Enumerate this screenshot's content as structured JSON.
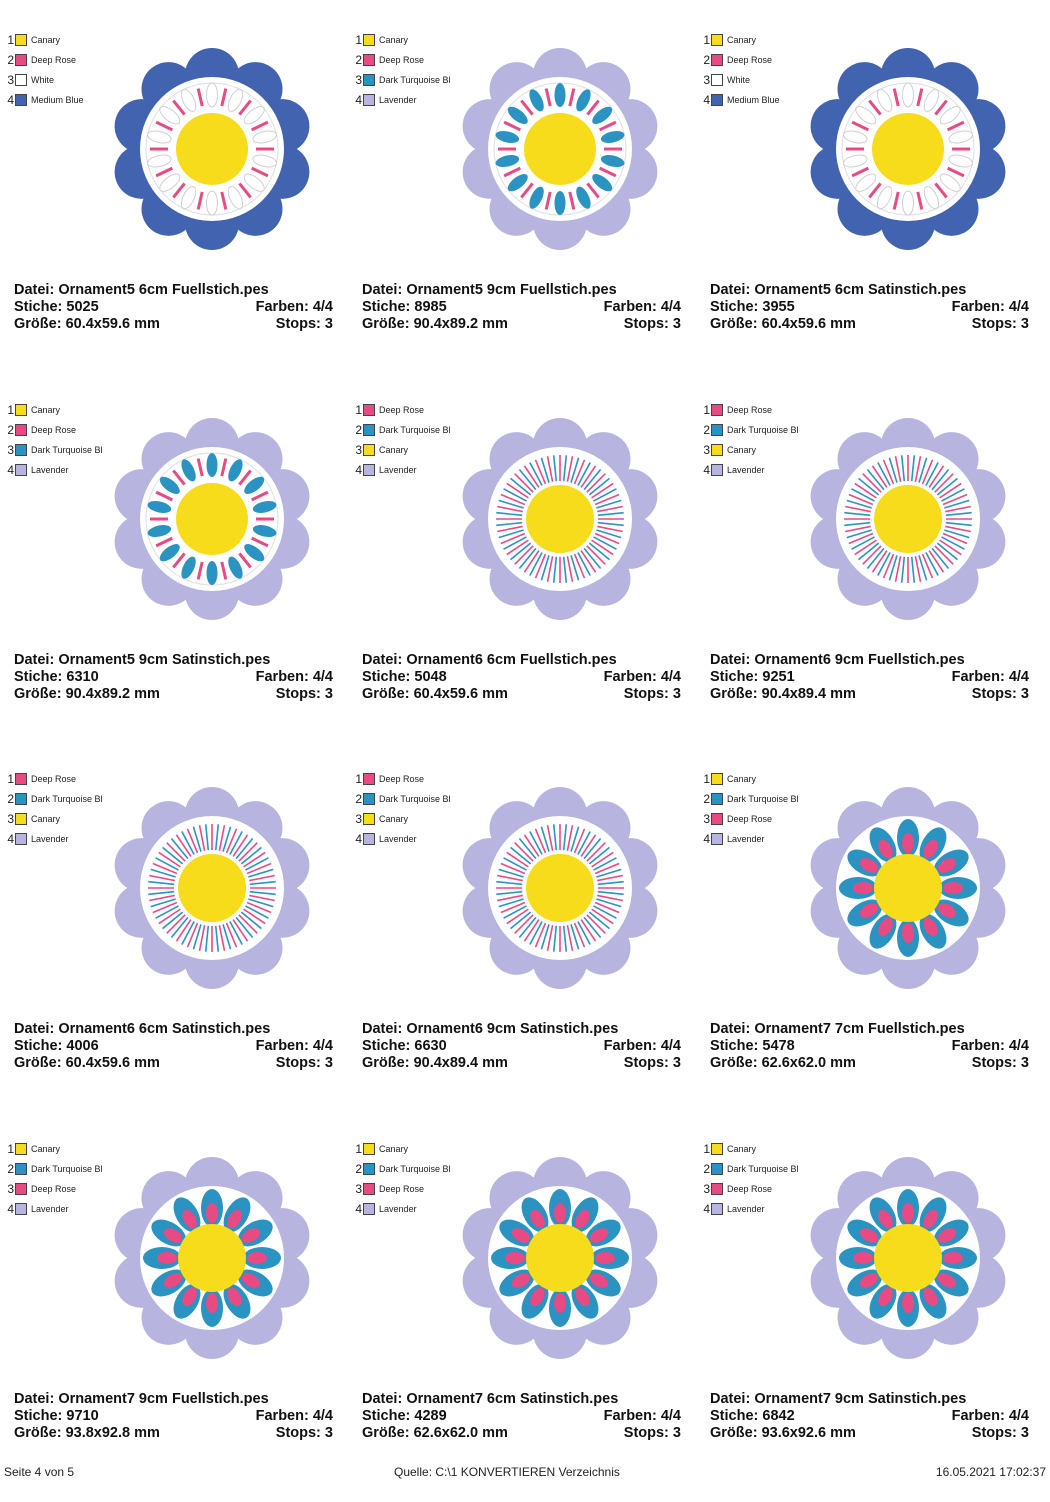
{
  "colors": {
    "canary": "#f6dc1a",
    "deep_rose": "#e84a83",
    "white": "#ffffff",
    "medium_blue": "#4163b0",
    "dark_turquoise": "#2a93c2",
    "lavender": "#b7b5e0"
  },
  "info_labels": {
    "file": "Datei:",
    "stitches": "Stiche:",
    "colors": "Farben:",
    "size": "Größe:",
    "stops": "Stops:"
  },
  "designs": [
    {
      "file": "Ornament5 6cm Fuellstich.pes",
      "stitches": "5025",
      "colors": "4/4",
      "size": "60.4x59.6 mm",
      "stops": "3",
      "style": "drops",
      "petal_icon": "scalloped-petal-icon",
      "petal": "#4163b0",
      "accent_a": "#ffffff",
      "accent_b": "#e84a83",
      "legend": [
        {
          "num": "1",
          "name": "Canary",
          "color": "#f6dc1a"
        },
        {
          "num": "2",
          "name": "Deep Rose",
          "color": "#e84a83"
        },
        {
          "num": "3",
          "name": "White",
          "color": "#ffffff"
        },
        {
          "num": "4",
          "name": "Medium Blue",
          "color": "#4163b0"
        }
      ]
    },
    {
      "file": "Ornament5 9cm Fuellstich.pes",
      "stitches": "8985",
      "colors": "4/4",
      "size": "90.4x89.2 mm",
      "stops": "3",
      "style": "drops",
      "petal_icon": "scalloped-petal-icon",
      "petal": "#b7b5e0",
      "accent_a": "#2a93c2",
      "accent_b": "#e84a83",
      "legend": [
        {
          "num": "1",
          "name": "Canary",
          "color": "#f6dc1a"
        },
        {
          "num": "2",
          "name": "Deep Rose",
          "color": "#e84a83"
        },
        {
          "num": "3",
          "name": "Dark Turquoise Bl",
          "color": "#2a93c2"
        },
        {
          "num": "4",
          "name": "Lavender",
          "color": "#b7b5e0"
        }
      ]
    },
    {
      "file": "Ornament5 6cm Satinstich.pes",
      "stitches": "3955",
      "colors": "4/4",
      "size": "60.4x59.6 mm",
      "stops": "3",
      "style": "drops",
      "petal_icon": "scalloped-petal-icon",
      "petal": "#4163b0",
      "accent_a": "#ffffff",
      "accent_b": "#e84a83",
      "legend": [
        {
          "num": "1",
          "name": "Canary",
          "color": "#f6dc1a"
        },
        {
          "num": "2",
          "name": "Deep Rose",
          "color": "#e84a83"
        },
        {
          "num": "3",
          "name": "White",
          "color": "#ffffff"
        },
        {
          "num": "4",
          "name": "Medium Blue",
          "color": "#4163b0"
        }
      ]
    },
    {
      "file": "Ornament5 9cm Satinstich.pes",
      "stitches": "6310",
      "colors": "4/4",
      "size": "90.4x89.2 mm",
      "stops": "3",
      "style": "drops",
      "petal_icon": "scalloped-petal-icon",
      "petal": "#b7b5e0",
      "accent_a": "#2a93c2",
      "accent_b": "#e84a83",
      "legend": [
        {
          "num": "1",
          "name": "Canary",
          "color": "#f6dc1a"
        },
        {
          "num": "2",
          "name": "Deep Rose",
          "color": "#e84a83"
        },
        {
          "num": "3",
          "name": "Dark Turquoise Bl",
          "color": "#2a93c2"
        },
        {
          "num": "4",
          "name": "Lavender",
          "color": "#b7b5e0"
        }
      ]
    },
    {
      "file": "Ornament6 6cm Fuellstich.pes",
      "stitches": "5048",
      "colors": "4/4",
      "size": "60.4x59.6 mm",
      "stops": "3",
      "style": "rays",
      "petal_icon": "scalloped-petal-icon",
      "petal": "#b7b5e0",
      "accent_a": "#e84a83",
      "accent_b": "#2a93c2",
      "legend": [
        {
          "num": "1",
          "name": "Deep Rose",
          "color": "#e84a83"
        },
        {
          "num": "2",
          "name": "Dark Turquoise Bl",
          "color": "#2a93c2"
        },
        {
          "num": "3",
          "name": "Canary",
          "color": "#f6dc1a"
        },
        {
          "num": "4",
          "name": "Lavender",
          "color": "#b7b5e0"
        }
      ]
    },
    {
      "file": "Ornament6 9cm Fuellstich.pes",
      "stitches": "9251",
      "colors": "4/4",
      "size": "90.4x89.4 mm",
      "stops": "3",
      "style": "rays",
      "petal_icon": "scalloped-petal-icon",
      "petal": "#b7b5e0",
      "accent_a": "#e84a83",
      "accent_b": "#2a93c2",
      "legend": [
        {
          "num": "1",
          "name": "Deep Rose",
          "color": "#e84a83"
        },
        {
          "num": "2",
          "name": "Dark Turquoise Bl",
          "color": "#2a93c2"
        },
        {
          "num": "3",
          "name": "Canary",
          "color": "#f6dc1a"
        },
        {
          "num": "4",
          "name": "Lavender",
          "color": "#b7b5e0"
        }
      ]
    },
    {
      "file": "Ornament6 6cm Satinstich.pes",
      "stitches": "4006",
      "colors": "4/4",
      "size": "60.4x59.6 mm",
      "stops": "3",
      "style": "rays",
      "petal_icon": "scalloped-petal-icon",
      "petal": "#b7b5e0",
      "accent_a": "#e84a83",
      "accent_b": "#2a93c2",
      "legend": [
        {
          "num": "1",
          "name": "Deep Rose",
          "color": "#e84a83"
        },
        {
          "num": "2",
          "name": "Dark Turquoise Bl",
          "color": "#2a93c2"
        },
        {
          "num": "3",
          "name": "Canary",
          "color": "#f6dc1a"
        },
        {
          "num": "4",
          "name": "Lavender",
          "color": "#b7b5e0"
        }
      ]
    },
    {
      "file": "Ornament6 9cm Satinstich.pes",
      "stitches": "6630",
      "colors": "4/4",
      "size": "90.4x89.4 mm",
      "stops": "3",
      "style": "rays",
      "petal_icon": "scalloped-petal-icon",
      "petal": "#b7b5e0",
      "accent_a": "#e84a83",
      "accent_b": "#2a93c2",
      "legend": [
        {
          "num": "1",
          "name": "Deep Rose",
          "color": "#e84a83"
        },
        {
          "num": "2",
          "name": "Dark Turquoise Bl",
          "color": "#2a93c2"
        },
        {
          "num": "3",
          "name": "Canary",
          "color": "#f6dc1a"
        },
        {
          "num": "4",
          "name": "Lavender",
          "color": "#b7b5e0"
        }
      ]
    },
    {
      "file": "Ornament7 7cm Fuellstich.pes",
      "stitches": "5478",
      "colors": "4/4",
      "size": "62.6x62.0 mm",
      "stops": "3",
      "style": "buds",
      "petal_icon": "scalloped-petal-icon",
      "petal": "#b7b5e0",
      "accent_a": "#2a93c2",
      "accent_b": "#e84a83",
      "legend": [
        {
          "num": "1",
          "name": "Canary",
          "color": "#f6dc1a"
        },
        {
          "num": "2",
          "name": "Dark Turquoise Bl",
          "color": "#2a93c2"
        },
        {
          "num": "3",
          "name": "Deep Rose",
          "color": "#e84a83"
        },
        {
          "num": "4",
          "name": "Lavender",
          "color": "#b7b5e0"
        }
      ]
    },
    {
      "file": "Ornament7 9cm Fuellstich.pes",
      "stitches": "9710",
      "colors": "4/4",
      "size": "93.8x92.8 mm",
      "stops": "3",
      "style": "buds",
      "petal_icon": "scalloped-petal-icon",
      "petal": "#b7b5e0",
      "accent_a": "#2a93c2",
      "accent_b": "#e84a83",
      "legend": [
        {
          "num": "1",
          "name": "Canary",
          "color": "#f6dc1a"
        },
        {
          "num": "2",
          "name": "Dark Turquoise Bl",
          "color": "#2a93c2"
        },
        {
          "num": "3",
          "name": "Deep Rose",
          "color": "#e84a83"
        },
        {
          "num": "4",
          "name": "Lavender",
          "color": "#b7b5e0"
        }
      ]
    },
    {
      "file": "Ornament7 6cm Satinstich.pes",
      "stitches": "4289",
      "colors": "4/4",
      "size": "62.6x62.0 mm",
      "stops": "3",
      "style": "buds",
      "petal_icon": "scalloped-petal-icon",
      "petal": "#b7b5e0",
      "accent_a": "#2a93c2",
      "accent_b": "#e84a83",
      "legend": [
        {
          "num": "1",
          "name": "Canary",
          "color": "#f6dc1a"
        },
        {
          "num": "2",
          "name": "Dark Turquoise Bl",
          "color": "#2a93c2"
        },
        {
          "num": "3",
          "name": "Deep Rose",
          "color": "#e84a83"
        },
        {
          "num": "4",
          "name": "Lavender",
          "color": "#b7b5e0"
        }
      ]
    },
    {
      "file": "Ornament7 9cm Satinstich.pes",
      "stitches": "6842",
      "colors": "4/4",
      "size": "93.6x92.6 mm",
      "stops": "3",
      "style": "buds",
      "petal_icon": "scalloped-petal-icon",
      "petal": "#b7b5e0",
      "accent_a": "#2a93c2",
      "accent_b": "#e84a83",
      "legend": [
        {
          "num": "1",
          "name": "Canary",
          "color": "#f6dc1a"
        },
        {
          "num": "2",
          "name": "Dark Turquoise Bl",
          "color": "#2a93c2"
        },
        {
          "num": "3",
          "name": "Deep Rose",
          "color": "#e84a83"
        },
        {
          "num": "4",
          "name": "Lavender",
          "color": "#b7b5e0"
        }
      ]
    }
  ],
  "footer": {
    "page": "Seite 4 von 5",
    "source": "Quelle: C:\\1 KONVERTIEREN Verzeichnis",
    "date": "16.05.2021 17:02:37"
  }
}
